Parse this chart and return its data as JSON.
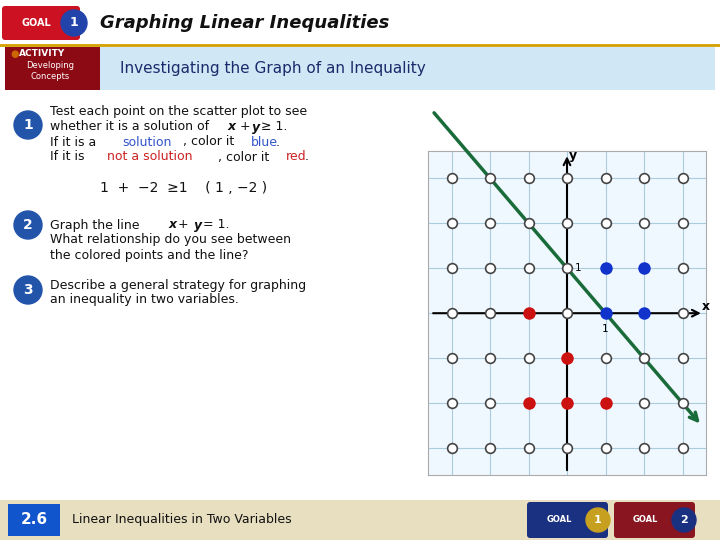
{
  "title": "Graphing Linear Inequalities",
  "activity_title": "Investigating the Graph of an Inequality",
  "footer_text": "Linear Inequalities in Two Variables",
  "footer_num": "2.6",
  "bg_main": "#ffffff",
  "bg_page": "#f5f0e8",
  "header_bg": "#ffffff",
  "activity_bg": "#d0e8f5",
  "activity_box_bg": "#8b0a14",
  "goal_badge_bg": "#cc1122",
  "goal_circle_color": "#2244aa",
  "step_circle_color": "#2255aa",
  "line_color": "#1a6b3a",
  "blue_dot": "#1133cc",
  "red_dot": "#cc1111",
  "grid_color": "#aaccdd",
  "graph_bg": "#f0f8ff",
  "graph_border": "#aaaaaa",
  "gold_line": "#d4a000",
  "footer_bg": "#e8dfc0",
  "footer_box_bg": "#1155cc",
  "goal1_bg": "#1a3080",
  "goal1_circle": "#c8a020",
  "goal2_bg": "#881520",
  "goal2_circle": "#1a3080",
  "blue_dots_list": [
    [
      1,
      1
    ],
    [
      2,
      1
    ],
    [
      1,
      0
    ],
    [
      2,
      0
    ]
  ],
  "red_dots_list": [
    [
      -1,
      0
    ],
    [
      0,
      -1
    ],
    [
      -1,
      -2
    ],
    [
      0,
      -2
    ],
    [
      1,
      -2
    ]
  ],
  "xmin": -3,
  "xmax": 3,
  "ymin": -3,
  "ymax": 3
}
